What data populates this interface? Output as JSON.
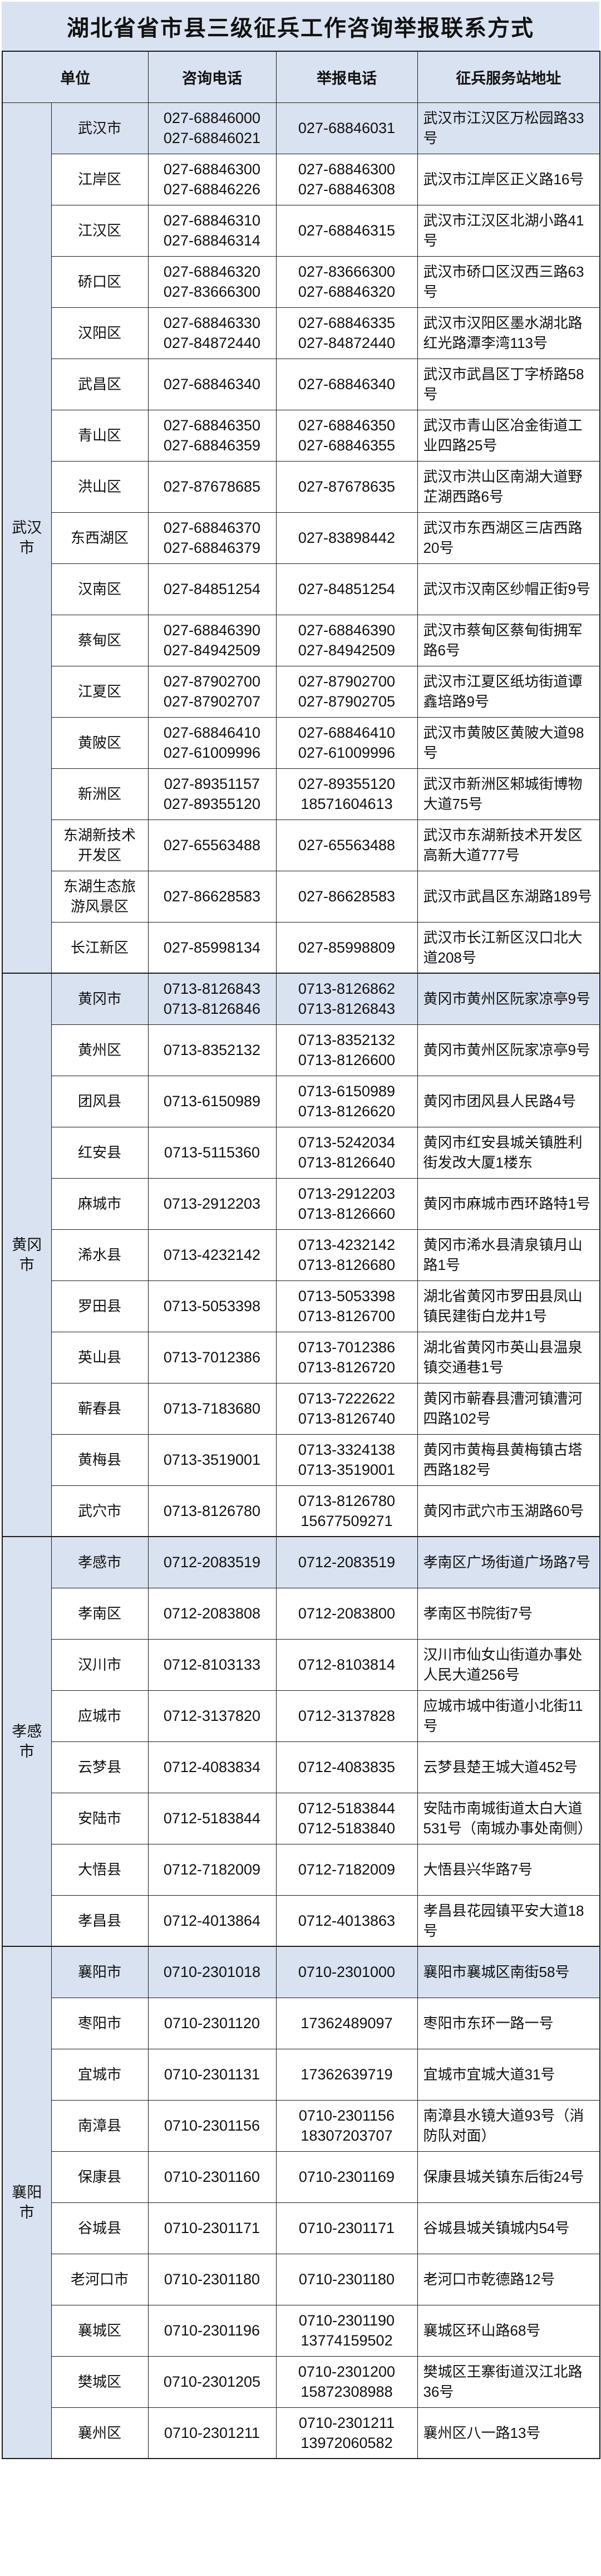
{
  "title": "湖北省省市县三级征兵工作咨询举报联系方式",
  "header": {
    "unit": "单位",
    "consult": "咨询电话",
    "report": "举报电话",
    "address": "征兵服务站地址"
  },
  "colors": {
    "band_bg": "#d9e2f0",
    "row_bg": "#ffffff",
    "border": "#1c1c1c"
  },
  "groups": [
    {
      "name": "武汉市",
      "rows": [
        {
          "unit": "武汉市",
          "consult": [
            "027-68846000",
            "027-68846021"
          ],
          "report": [
            "027-68846031"
          ],
          "address": "武汉市江汉区万松园路33号",
          "highlight": true
        },
        {
          "unit": "江岸区",
          "consult": [
            "027-68846300",
            "027-68846226"
          ],
          "report": [
            "027-68846300",
            "027-68846308"
          ],
          "address": "武汉市江岸区正义路16号"
        },
        {
          "unit": "江汉区",
          "consult": [
            "027-68846310",
            "027-68846314"
          ],
          "report": [
            "027-68846315"
          ],
          "address": "武汉市江汉区北湖小路41号"
        },
        {
          "unit": "硚口区",
          "consult": [
            "027-68846320",
            "027-83666300"
          ],
          "report": [
            "027-83666300",
            "027-68846320"
          ],
          "address": "武汉市硚口区汉西三路63号"
        },
        {
          "unit": "汉阳区",
          "consult": [
            "027-68846330",
            "027-84872440"
          ],
          "report": [
            "027-68846335",
            "027-84872440"
          ],
          "address": "武汉市汉阳区墨水湖北路红光路潭李湾113号"
        },
        {
          "unit": "武昌区",
          "consult": [
            "027-68846340"
          ],
          "report": [
            "027-68846340"
          ],
          "address": "武汉市武昌区丁字桥路58号"
        },
        {
          "unit": "青山区",
          "consult": [
            "027-68846350",
            "027-68846359"
          ],
          "report": [
            "027-68846350",
            "027-68846355"
          ],
          "address": "武汉市青山区冶金街道工业四路25号"
        },
        {
          "unit": "洪山区",
          "consult": [
            "027-87678685"
          ],
          "report": [
            "027-87678635"
          ],
          "address": "武汉市洪山区南湖大道野芷湖西路6号"
        },
        {
          "unit": "东西湖区",
          "consult": [
            "027-68846370",
            "027-68846379"
          ],
          "report": [
            "027-83898442"
          ],
          "address": "武汉市东西湖区三店西路20号"
        },
        {
          "unit": "汉南区",
          "consult": [
            "027-84851254"
          ],
          "report": [
            "027-84851254"
          ],
          "address": "武汉市汉南区纱帽正街9号"
        },
        {
          "unit": "蔡甸区",
          "consult": [
            "027-68846390",
            "027-84942509"
          ],
          "report": [
            "027-68846390",
            "027-84942509"
          ],
          "address": "武汉市蔡甸区蔡甸街拥军路6号"
        },
        {
          "unit": "江夏区",
          "consult": [
            "027-87902700",
            "027-87902707"
          ],
          "report": [
            "027-87902700",
            "027-87902705"
          ],
          "address": "武汉市江夏区纸坊街道谭鑫培路9号"
        },
        {
          "unit": "黄陂区",
          "consult": [
            "027-68846410",
            "027-61009996"
          ],
          "report": [
            "027-68846410",
            "027-61009996"
          ],
          "address": "武汉市黄陂区黄陂大道98号"
        },
        {
          "unit": "新洲区",
          "consult": [
            "027-89351157",
            "027-89355120"
          ],
          "report": [
            "027-89355120",
            "18571604613"
          ],
          "address": "武汉市新洲区邾城街博物大道75号"
        },
        {
          "unit": "东湖新技术开发区",
          "consult": [
            "027-65563488"
          ],
          "report": [
            "027-65563488"
          ],
          "address": "武汉市东湖新技术开发区高新大道777号"
        },
        {
          "unit": "东湖生态旅游风景区",
          "consult": [
            "027-86628583"
          ],
          "report": [
            "027-86628583"
          ],
          "address": "武汉市武昌区东湖路189号"
        },
        {
          "unit": "长江新区",
          "consult": [
            "027-85998134"
          ],
          "report": [
            "027-85998809"
          ],
          "address": "武汉市长江新区汉口北大道208号"
        }
      ]
    },
    {
      "name": "黄冈市",
      "rows": [
        {
          "unit": "黄冈市",
          "consult": [
            "0713-8126843",
            "0713-8126846"
          ],
          "report": [
            "0713-8126862",
            "0713-8126843"
          ],
          "address": "黄冈市黄州区阮家凉亭9号",
          "highlight": true
        },
        {
          "unit": "黄州区",
          "consult": [
            "0713-8352132"
          ],
          "report": [
            "0713-8352132",
            "0713-8126600"
          ],
          "address": "黄冈市黄州区阮家凉亭9号"
        },
        {
          "unit": "团风县",
          "consult": [
            "0713-6150989"
          ],
          "report": [
            "0713-6150989",
            "0713-8126620"
          ],
          "address": "黄冈市团风县人民路4号"
        },
        {
          "unit": "红安县",
          "consult": [
            "0713-5115360"
          ],
          "report": [
            "0713-5242034",
            "0713-8126640"
          ],
          "address": "黄冈市红安县城关镇胜利街发改大厦1楼东"
        },
        {
          "unit": "麻城市",
          "consult": [
            "0713-2912203"
          ],
          "report": [
            "0713-2912203",
            "0713-8126660"
          ],
          "address": "黄冈市麻城市西环路特1号"
        },
        {
          "unit": "浠水县",
          "consult": [
            "0713-4232142"
          ],
          "report": [
            "0713-4232142",
            "0713-8126680"
          ],
          "address": "黄冈市浠水县清泉镇月山路1号"
        },
        {
          "unit": "罗田县",
          "consult": [
            "0713-5053398"
          ],
          "report": [
            "0713-5053398",
            "0713-8126700"
          ],
          "address": "湖北省黄冈市罗田县凤山镇民建街白龙井1号"
        },
        {
          "unit": "英山县",
          "consult": [
            "0713-7012386"
          ],
          "report": [
            "0713-7012386",
            "0713-8126720"
          ],
          "address": "湖北省黄冈市英山县温泉镇交通巷1号"
        },
        {
          "unit": "蕲春县",
          "consult": [
            "0713-7183680"
          ],
          "report": [
            "0713-7222622",
            "0713-8126740"
          ],
          "address": "黄冈市蕲春县漕河镇漕河四路102号"
        },
        {
          "unit": "黄梅县",
          "consult": [
            "0713-3519001"
          ],
          "report": [
            "0713-3324138",
            "0713-3519001"
          ],
          "address": "黄冈市黄梅县黄梅镇古塔西路182号"
        },
        {
          "unit": "武穴市",
          "consult": [
            "0713-8126780"
          ],
          "report": [
            "0713-8126780",
            "15677509271"
          ],
          "address": "黄冈市武穴市玉湖路60号"
        }
      ]
    },
    {
      "name": "孝感市",
      "rows": [
        {
          "unit": "孝感市",
          "consult": [
            "0712-2083519"
          ],
          "report": [
            "0712-2083519"
          ],
          "address": "孝南区广场街道广场路7号",
          "highlight": true
        },
        {
          "unit": "孝南区",
          "consult": [
            "0712-2083808"
          ],
          "report": [
            "0712-2083800"
          ],
          "address": "孝南区书院街7号"
        },
        {
          "unit": "汉川市",
          "consult": [
            "0712-8103133"
          ],
          "report": [
            "0712-8103814"
          ],
          "address": "汉川市仙女山街道办事处人民大道256号"
        },
        {
          "unit": "应城市",
          "consult": [
            "0712-3137820"
          ],
          "report": [
            "0712-3137828"
          ],
          "address": "应城市城中街道小北街11号"
        },
        {
          "unit": "云梦县",
          "consult": [
            "0712-4083834"
          ],
          "report": [
            "0712-4083835"
          ],
          "address": "云梦县楚王城大道452号"
        },
        {
          "unit": "安陆市",
          "consult": [
            "0712-5183844"
          ],
          "report": [
            "0712-5183844",
            "0712-5183840"
          ],
          "address": "安陆市南城街道太白大道531号（南城办事处南侧）"
        },
        {
          "unit": "大悟县",
          "consult": [
            "0712-7182009"
          ],
          "report": [
            "0712-7182009"
          ],
          "address": "大悟县兴华路7号"
        },
        {
          "unit": "孝昌县",
          "consult": [
            "0712-4013864"
          ],
          "report": [
            "0712-4013863"
          ],
          "address": "孝昌县花园镇平安大道18号"
        }
      ]
    },
    {
      "name": "襄阳市",
      "rows": [
        {
          "unit": "襄阳市",
          "consult": [
            "0710-2301018"
          ],
          "report": [
            "0710-2301000"
          ],
          "address": "襄阳市襄城区南街58号",
          "highlight": true
        },
        {
          "unit": "枣阳市",
          "consult": [
            "0710-2301120"
          ],
          "report": [
            "17362489097"
          ],
          "address": "枣阳市东环一路一号"
        },
        {
          "unit": "宜城市",
          "consult": [
            "0710-2301131"
          ],
          "report": [
            "17362639719"
          ],
          "address": "宜城市宜城大道31号"
        },
        {
          "unit": "南漳县",
          "consult": [
            "0710-2301156"
          ],
          "report": [
            "0710-2301156",
            "18307203707"
          ],
          "address": "南漳县水镜大道93号（消防队对面）"
        },
        {
          "unit": "保康县",
          "consult": [
            "0710-2301160"
          ],
          "report": [
            "0710-2301169"
          ],
          "address": "保康县城关镇东后街24号"
        },
        {
          "unit": "谷城县",
          "consult": [
            "0710-2301171"
          ],
          "report": [
            "0710-2301171"
          ],
          "address": "谷城县城关镇城内54号"
        },
        {
          "unit": "老河口市",
          "consult": [
            "0710-2301180"
          ],
          "report": [
            "0710-2301180"
          ],
          "address": "老河口市乾德路12号"
        },
        {
          "unit": "襄城区",
          "consult": [
            "0710-2301196"
          ],
          "report": [
            "0710-2301190",
            "13774159502"
          ],
          "address": "襄城区环山路68号"
        },
        {
          "unit": "樊城区",
          "consult": [
            "0710-2301205"
          ],
          "report": [
            "0710-2301200",
            "15872308988"
          ],
          "address": "樊城区王寨街道汉江北路36号"
        },
        {
          "unit": "襄州区",
          "consult": [
            "0710-2301211"
          ],
          "report": [
            "0710-2301211",
            "13972060582"
          ],
          "address": "襄州区八一路13号"
        }
      ]
    }
  ]
}
